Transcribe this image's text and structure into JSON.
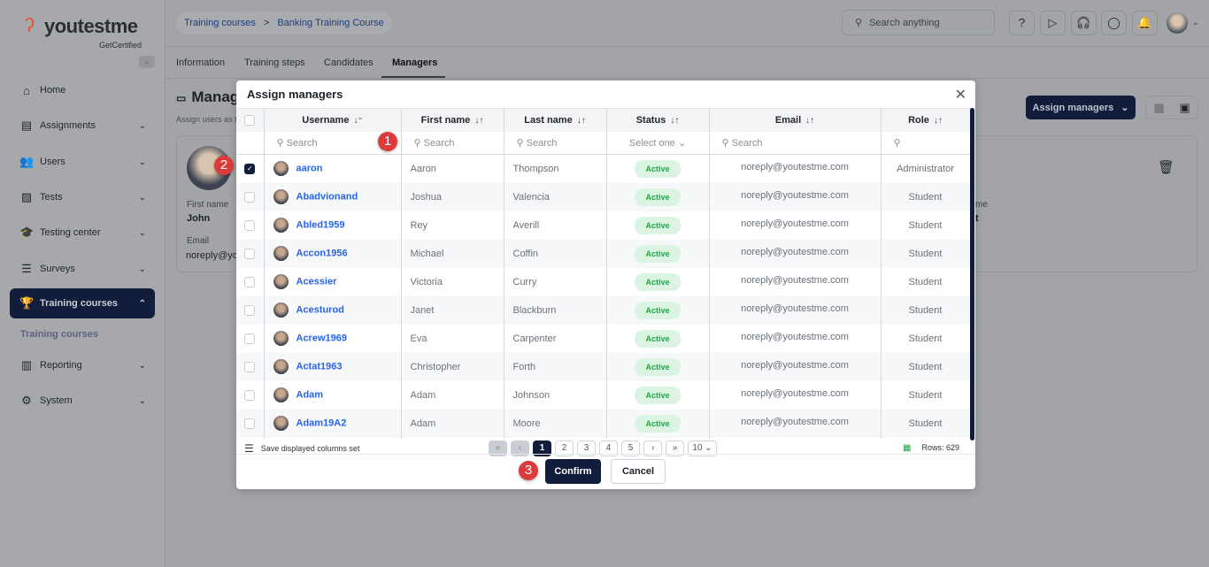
{
  "logo": {
    "word": "youtestme",
    "tagline": "GetCertified"
  },
  "sidebar": {
    "items": [
      {
        "label": "Home",
        "icon": "home-icon",
        "glyph": "⌂"
      },
      {
        "label": "Assignments",
        "icon": "document-icon",
        "glyph": "▤"
      },
      {
        "label": "Users",
        "icon": "users-icon",
        "glyph": "👥"
      },
      {
        "label": "Tests",
        "icon": "test-icon",
        "glyph": "▧"
      },
      {
        "label": "Testing center",
        "icon": "graduation-cap-icon",
        "glyph": "🎓"
      },
      {
        "label": "Surveys",
        "icon": "list-icon",
        "glyph": "☰"
      },
      {
        "label": "Training courses",
        "icon": "trophy-icon",
        "glyph": "🏆"
      },
      {
        "label": "Reporting",
        "icon": "report-icon",
        "glyph": "▥"
      },
      {
        "label": "System",
        "icon": "gear-icon",
        "glyph": "⚙"
      }
    ],
    "sub_item": "Training courses"
  },
  "breadcrumb": {
    "items": [
      "Training courses",
      "Banking Training Course"
    ],
    "sep": ">"
  },
  "header": {
    "search_placeholder": "Search anything"
  },
  "tabs": [
    "Information",
    "Training steps",
    "Candidates",
    "Managers"
  ],
  "page": {
    "title": "Manag",
    "subtitle": "Assign users as t",
    "assign_button": "Assign managers",
    "card": {
      "first_name_label": "First name",
      "first_name": "John",
      "email_label": "Email",
      "email": "noreply@yo",
      "right_label": "me",
      "right_value": "t"
    }
  },
  "modal": {
    "title": "Assign managers",
    "columns": [
      "Username",
      "First name",
      "Last name",
      "Status",
      "Email",
      "Role"
    ],
    "filters": {
      "search": "Search",
      "status": "Select one"
    },
    "rows": [
      {
        "checked": true,
        "username": "aaron",
        "first": "Aaron",
        "last": "Thompson",
        "status": "Active",
        "email": "noreply@youtestme.com",
        "role": "Administrator"
      },
      {
        "checked": false,
        "username": "Abadvionand",
        "first": "Joshua",
        "last": "Valencia",
        "status": "Active",
        "email": "noreply@youtestme.com",
        "role": "Student"
      },
      {
        "checked": false,
        "username": "Abled1959",
        "first": "Rey",
        "last": "Averill",
        "status": "Active",
        "email": "noreply@youtestme.com",
        "role": "Student"
      },
      {
        "checked": false,
        "username": "Accon1956",
        "first": "Michael",
        "last": "Coffin",
        "status": "Active",
        "email": "noreply@youtestme.com",
        "role": "Student"
      },
      {
        "checked": false,
        "username": "Acessier",
        "first": "Victoria",
        "last": "Curry",
        "status": "Active",
        "email": "noreply@youtestme.com",
        "role": "Student"
      },
      {
        "checked": false,
        "username": "Acesturod",
        "first": "Janet",
        "last": "Blackburn",
        "status": "Active",
        "email": "noreply@youtestme.com",
        "role": "Student"
      },
      {
        "checked": false,
        "username": "Acrew1969",
        "first": "Eva",
        "last": "Carpenter",
        "status": "Active",
        "email": "noreply@youtestme.com",
        "role": "Student"
      },
      {
        "checked": false,
        "username": "Actat1963",
        "first": "Christopher",
        "last": "Forth",
        "status": "Active",
        "email": "noreply@youtestme.com",
        "role": "Student"
      },
      {
        "checked": false,
        "username": "Adam",
        "first": "Adam",
        "last": "Johnson",
        "status": "Active",
        "email": "noreply@youtestme.com",
        "role": "Student"
      },
      {
        "checked": false,
        "username": "Adam19A2",
        "first": "Adam",
        "last": "Moore",
        "status": "Active",
        "email": "noreply@youtestme.com",
        "role": "Student"
      }
    ],
    "save_columns": "Save displayed columns set",
    "pages": [
      "1",
      "2",
      "3",
      "4",
      "5"
    ],
    "current_page": "1",
    "page_size": "10",
    "rows_count": "Rows: 629",
    "confirm": "Confirm",
    "cancel": "Cancel"
  },
  "steps": [
    "1",
    "2",
    "3"
  ],
  "colors": {
    "primary": "#121c3b",
    "link": "#2563eb",
    "active_badge": "#22a447",
    "step_marker": "#dc3b3b"
  }
}
